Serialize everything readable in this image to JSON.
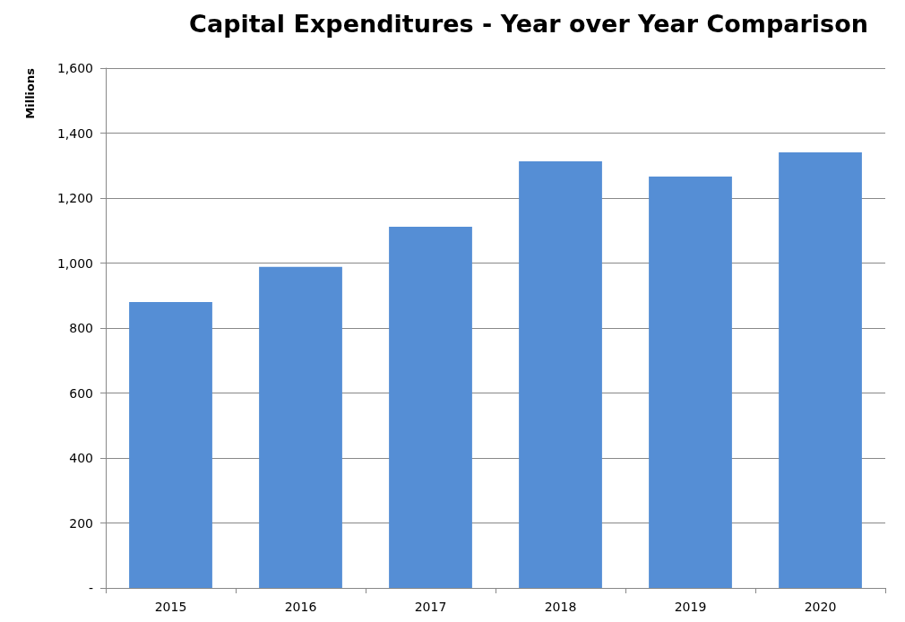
{
  "chart_data": {
    "type": "bar",
    "title": "Capital Expenditures - Year over Year Comparison",
    "ylabel": "Millions",
    "categories": [
      "2015",
      "2016",
      "2017",
      "2018",
      "2019",
      "2020"
    ],
    "values": [
      880,
      988,
      1112,
      1313,
      1266,
      1341
    ],
    "color": "#558ed5",
    "ylim": [
      0,
      1600
    ],
    "yticks": [
      {
        "value": 0,
        "label": "-"
      },
      {
        "value": 200,
        "label": "200"
      },
      {
        "value": 400,
        "label": "400"
      },
      {
        "value": 600,
        "label": "600"
      },
      {
        "value": 800,
        "label": "800"
      },
      {
        "value": 1000,
        "label": "1,000"
      },
      {
        "value": 1200,
        "label": "1,200"
      },
      {
        "value": 1400,
        "label": "1,400"
      },
      {
        "value": 1600,
        "label": "1,600"
      }
    ],
    "grid": "y"
  }
}
